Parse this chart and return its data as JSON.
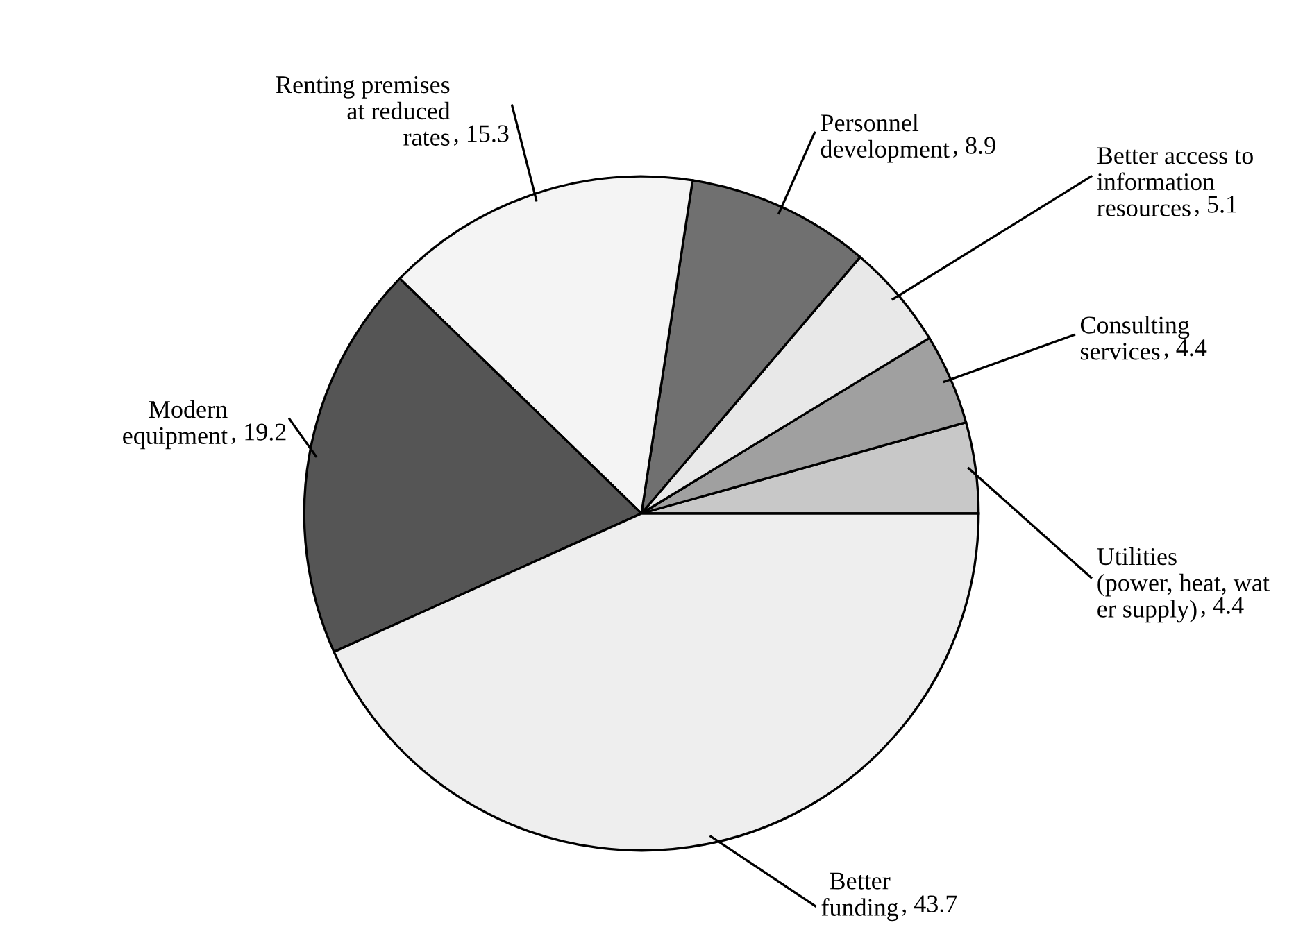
{
  "chart_data": {
    "type": "pie",
    "categories": [
      "Utilities\n(power, heat, wat\ner supply)",
      "Consulting\nservices",
      "Better access to\ninformation\nresources",
      "Personnel\ndevelopment",
      "Renting premises\nat reduced\nrates",
      "Modern\nequipment",
      "Better\nfunding"
    ],
    "values": [
      4.4,
      4.4,
      5.1,
      8.9,
      15.3,
      19.2,
      43.7
    ],
    "colors": [
      "#c8c8c8",
      "#a0a0a0",
      "#e8e8e8",
      "#707070",
      "#f4f4f4",
      "#555555",
      "#eeeeee"
    ],
    "value_labels": [
      ", 4.4",
      ", 4.4",
      ", 5.1",
      ", 8.9",
      ", 15.3",
      ", 19.2",
      ", 43.7"
    ]
  }
}
